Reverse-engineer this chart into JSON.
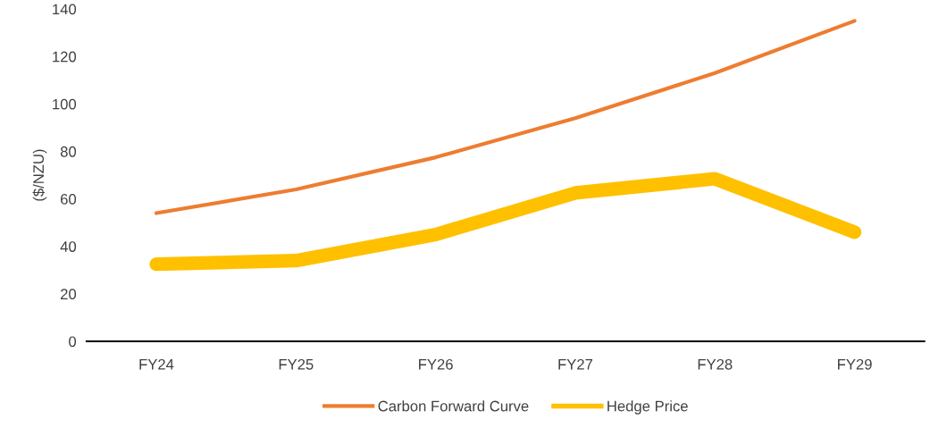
{
  "chart_data": {
    "type": "line",
    "ylabel": "($/NZU)",
    "categories": [
      "FY24",
      "FY25",
      "FY26",
      "FY27",
      "FY28",
      "FY29"
    ],
    "series": [
      {
        "name": "Carbon Forward Curve",
        "color": "#ed7d31",
        "values": [
          54,
          64,
          77.5,
          94,
          113,
          135
        ]
      },
      {
        "name": "Hedge Price",
        "color": "#ffc000",
        "values": [
          32.5,
          34,
          45,
          62.5,
          68.5,
          46
        ]
      }
    ],
    "ylim": [
      0,
      140
    ],
    "yticks": [
      0,
      20,
      40,
      60,
      80,
      100,
      120,
      140
    ],
    "grid": false,
    "legend": "bottom",
    "marker": "none",
    "line_style": "solid"
  }
}
